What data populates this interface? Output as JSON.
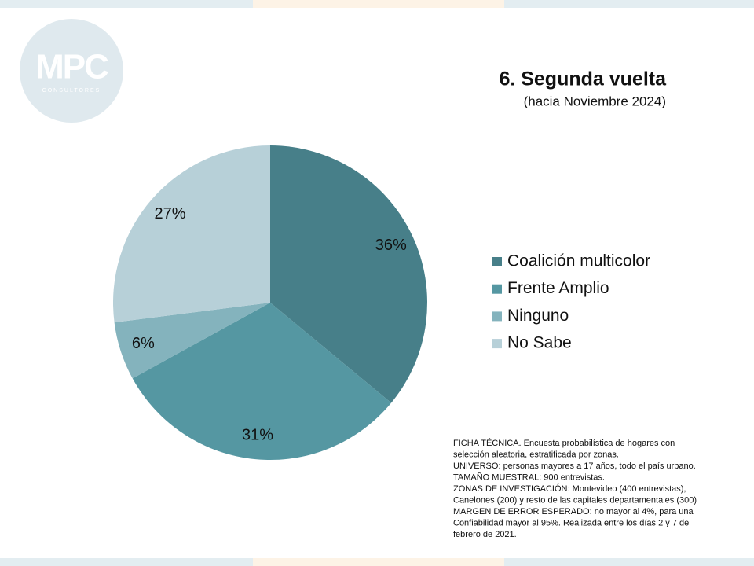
{
  "logo": {
    "text": "MPC",
    "subtext": "CONSULTORES"
  },
  "chart_data": {
    "type": "pie",
    "title": "6. Segunda vuelta",
    "subtitle": "(hacia Noviembre 2024)",
    "categories": [
      "Coalición multicolor",
      "Frente Amplio",
      "Ninguno",
      "No Sabe"
    ],
    "values": [
      36,
      31,
      6,
      27
    ],
    "value_labels": [
      "36%",
      "31%",
      "6%",
      "27%"
    ],
    "colors": [
      "#477f89",
      "#5597a2",
      "#84b3bd",
      "#b7d0d8"
    ],
    "legend": "right",
    "notes": [
      "FICHA TÉCNICA. Encuesta probabilística de hogares con",
      "selección aleatoria, estratificada por zonas.",
      "UNIVERSO: personas mayores a 17 años, todo el país urbano.",
      "TAMAÑO MUESTRAL: 900 entrevistas.",
      "ZONAS DE INVESTIGACIÓN: Montevideo (400 entrevistas),",
      "Canelones (200) y resto de las capitales departamentales (300)",
      "MARGEN DE ERROR ESPERADO: no mayor al 4%, para una",
      "Confiabilidad mayor al 95%. Realizada entre los días 2 y 7 de",
      "febrero de 2021."
    ]
  }
}
